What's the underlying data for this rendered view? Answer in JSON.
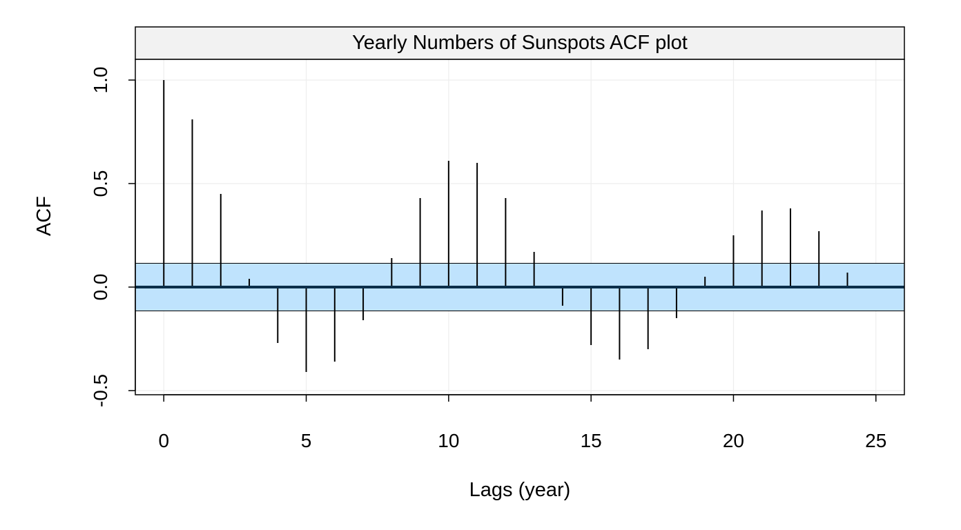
{
  "chart_data": {
    "type": "bar",
    "title": "Yearly Numbers of Sunspots ACF plot",
    "xlabel": "Lags (year)",
    "ylabel": "ACF",
    "xlim": [
      -1,
      26
    ],
    "ylim": [
      -0.52,
      1.1
    ],
    "x_ticks": [
      0,
      5,
      10,
      15,
      20,
      25
    ],
    "y_ticks": [
      -0.5,
      0.0,
      0.5,
      1.0
    ],
    "x_tick_labels": [
      "0",
      "5",
      "10",
      "15",
      "20",
      "25"
    ],
    "y_tick_labels": [
      "-0.5",
      "0.0",
      "0.5",
      "1.0"
    ],
    "grid": true,
    "confidence_band": [
      -0.115,
      0.115
    ],
    "colors": {
      "band": "#bfe3fd",
      "zero_line": "#0b2f4a",
      "spike": "#000000",
      "grid": "#ededed",
      "strip_bg": "#f2f2f2"
    },
    "lags": [
      0,
      1,
      2,
      3,
      4,
      5,
      6,
      7,
      8,
      9,
      10,
      11,
      12,
      13,
      14,
      15,
      16,
      17,
      18,
      19,
      20,
      21,
      22,
      23,
      24
    ],
    "values": [
      1.0,
      0.81,
      0.45,
      0.04,
      -0.27,
      -0.41,
      -0.36,
      -0.16,
      0.14,
      0.43,
      0.61,
      0.6,
      0.43,
      0.17,
      -0.09,
      -0.28,
      -0.35,
      -0.3,
      -0.15,
      0.05,
      0.25,
      0.37,
      0.38,
      0.27,
      0.07
    ]
  }
}
